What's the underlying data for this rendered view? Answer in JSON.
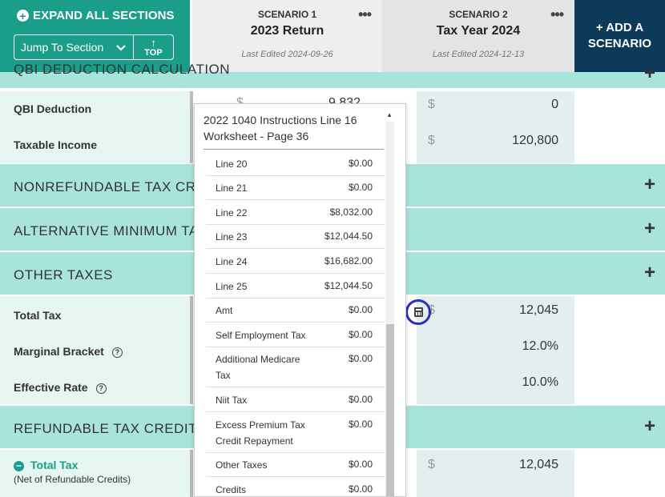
{
  "header": {
    "expand_label": "EXPAND ALL SECTIONS",
    "jump_label": "Jump To Section",
    "top_label": "TOP",
    "add_scenario": "+ ADD A SCENARIO",
    "scenarios": [
      {
        "label": "SCENARIO 1",
        "name": "2023 Return",
        "edited": "Last Edited 2024-09-26"
      },
      {
        "label": "SCENARIO 2",
        "name": "Tax Year 2024",
        "edited": "Last Edited 2024-12-13"
      }
    ]
  },
  "sections": {
    "qbi_title": "QBI DEDUCTION CALCULATION",
    "nonref_title": "NONREFUNDABLE TAX CREDITS",
    "amt_title": "ALTERNATIVE MINIMUM TAX (AMT)",
    "other_title": "OTHER TAXES",
    "refund_title": "REFUNDABLE TAX CREDITS"
  },
  "rows": {
    "qbi_deduction": {
      "label": "QBI Deduction",
      "s1": "9,832",
      "s2": "0"
    },
    "taxable_income": {
      "label": "Taxable Income",
      "s2": "120,800"
    },
    "total_tax": {
      "label": "Total Tax",
      "s2": "12,045"
    },
    "marginal": {
      "label": "Marginal Bracket",
      "s2": "12.0%"
    },
    "effective": {
      "label": "Effective Rate",
      "s2": "10.0%"
    },
    "total_tax_net": {
      "label": "Total Tax",
      "sub": "(Net of Refundable Credits)",
      "s2": "12,045"
    }
  },
  "popup": {
    "title": "2022 1040 Instructions Line 16 Worksheet - Page 36",
    "items": [
      {
        "label": "Line 20",
        "value": "$0.00"
      },
      {
        "label": "Line 21",
        "value": "$0.00"
      },
      {
        "label": "Line 22",
        "value": "$8,032.00"
      },
      {
        "label": "Line 23",
        "value": "$12,044.50"
      },
      {
        "label": "Line 24",
        "value": "$16,682.00"
      },
      {
        "label": "Line 25",
        "value": "$12,044.50"
      },
      {
        "label": "Amt",
        "value": "$0.00"
      },
      {
        "label": "Self Employment Tax",
        "value": "$0.00"
      },
      {
        "label": "Additional Medicare Tax",
        "value": "$0.00"
      },
      {
        "label": "Niit Tax",
        "value": "$0.00"
      },
      {
        "label": "Excess Premium Tax Credit Repayment",
        "value": "$0.00"
      },
      {
        "label": "Other Taxes",
        "value": "$0.00"
      },
      {
        "label": "Credits",
        "value": "$0.00"
      }
    ]
  },
  "symbols": {
    "dollar": "$"
  },
  "colors": {
    "teal": "#1a9e89",
    "navy": "#0e3a5a",
    "band": "#a8e3dc",
    "highlight_ring": "#2b2fb8"
  },
  "icons": [
    "plus-circle-icon",
    "chevron-down-icon",
    "arrow-up-icon",
    "more-icon",
    "plus-icon",
    "help-icon",
    "minus-circle-icon",
    "calculator-icon",
    "scroll-up-icon"
  ]
}
